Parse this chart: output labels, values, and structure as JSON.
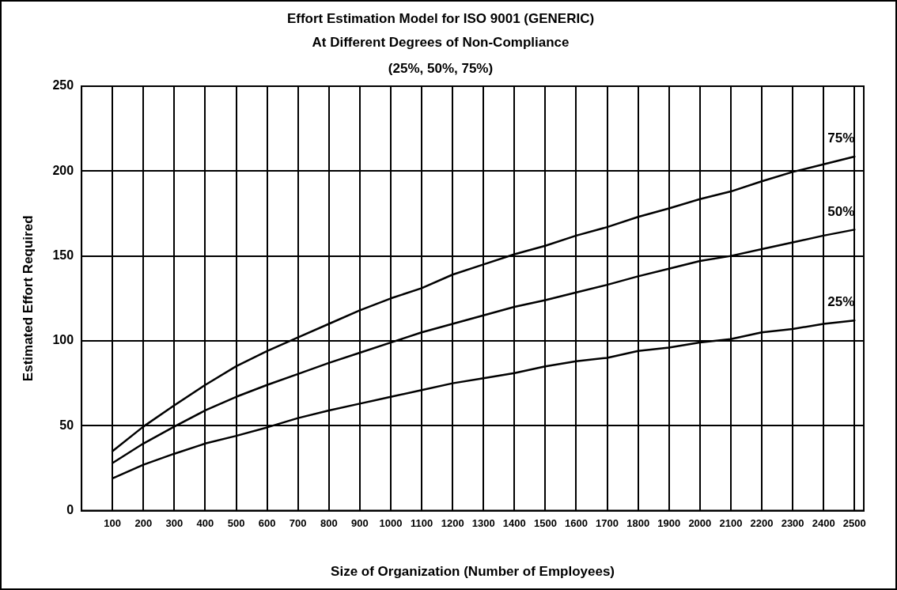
{
  "chart_data": {
    "type": "line",
    "title": "Effort Estimation Model for ISO 9001 (GENERIC)",
    "subtitle": "At Different Degrees of Non-Compliance\n(25%, 50%, 75%)",
    "xlabel": "Size of Organization (Number of Employees)",
    "ylabel": "Estimated Effort Required",
    "x": [
      100,
      200,
      300,
      400,
      500,
      600,
      700,
      800,
      900,
      1000,
      1100,
      1200,
      1300,
      1400,
      1500,
      1600,
      1700,
      1800,
      1900,
      2000,
      2100,
      2200,
      2300,
      2400,
      2500
    ],
    "series": [
      {
        "name": "75%",
        "color": "#000000",
        "values": [
          35,
          49.5,
          62,
          74,
          85,
          94,
          102,
          110,
          118,
          125,
          131,
          139,
          145,
          151,
          156,
          162,
          167,
          173,
          178,
          183.5,
          188,
          194,
          199.5,
          204,
          208.5
        ]
      },
      {
        "name": "50%",
        "color": "#000000",
        "values": [
          28,
          39.5,
          49.5,
          59,
          67,
          74,
          80.5,
          87,
          93,
          99,
          105,
          110,
          115,
          120,
          124,
          128.5,
          133,
          138,
          142.5,
          147,
          150,
          154,
          158,
          162,
          165.5
        ]
      },
      {
        "name": "25%",
        "color": "#000000",
        "values": [
          19,
          27,
          33.5,
          39.5,
          44,
          49,
          54.5,
          59,
          63,
          67,
          71,
          75,
          78,
          81,
          85,
          88,
          90,
          94,
          96,
          99,
          101,
          105,
          107,
          110,
          112
        ]
      }
    ],
    "xlim": [
      0,
      2530
    ],
    "xticks": [
      100,
      200,
      300,
      400,
      500,
      600,
      700,
      800,
      900,
      1000,
      1100,
      1200,
      1300,
      1400,
      1500,
      1600,
      1700,
      1800,
      1900,
      2000,
      2100,
      2200,
      2300,
      2400,
      2500
    ],
    "ylim": [
      0,
      250
    ],
    "yticks": [
      0,
      50,
      100,
      150,
      200,
      250
    ],
    "grid": true,
    "legend": false,
    "marker": "none",
    "line_style": "solid"
  }
}
